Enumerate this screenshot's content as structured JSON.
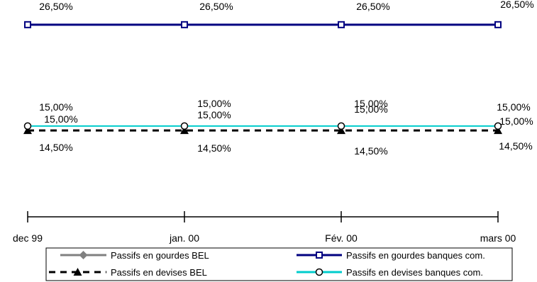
{
  "chart_data": {
    "type": "line",
    "categories": [
      "dec 99",
      "jan. 00",
      "Fév. 00",
      "mars 00"
    ],
    "series": [
      {
        "name": "Passifs en gourdes BEL",
        "values": [
          15.0,
          15.0,
          15.0,
          15.0
        ],
        "labels": [
          "15,00%",
          "15,00%",
          "15,00%",
          "15,00%"
        ],
        "color": "#808080",
        "marker": "diamond",
        "dash": "solid"
      },
      {
        "name": "Passifs en gourdes banques com.",
        "values": [
          26.5,
          26.5,
          26.5,
          26.5
        ],
        "labels": [
          "26,50%",
          "26,50%",
          "26,50%",
          "26,50%"
        ],
        "color": "#000080",
        "marker": "square",
        "dash": "solid"
      },
      {
        "name": "Passifs en devises BEL",
        "values": [
          14.5,
          14.5,
          14.5,
          14.5
        ],
        "labels": [
          "14,50%",
          "14,50%",
          "14,50%",
          "14,50%"
        ],
        "color": "#000000",
        "marker": "triangle",
        "dash": "dashed"
      },
      {
        "name": "Passifs en devises banques com.",
        "values": [
          15.0,
          15.0,
          15.0,
          15.0
        ],
        "labels": [
          "15,00%",
          "15,00%",
          "15,00%",
          "15,00%"
        ],
        "color": "#00CCCC",
        "marker": "circle",
        "dash": "solid"
      }
    ],
    "xlabel": "",
    "ylabel": "",
    "ylim": [
      4.7,
      29.3
    ],
    "grid": false,
    "legend": "bottom"
  }
}
